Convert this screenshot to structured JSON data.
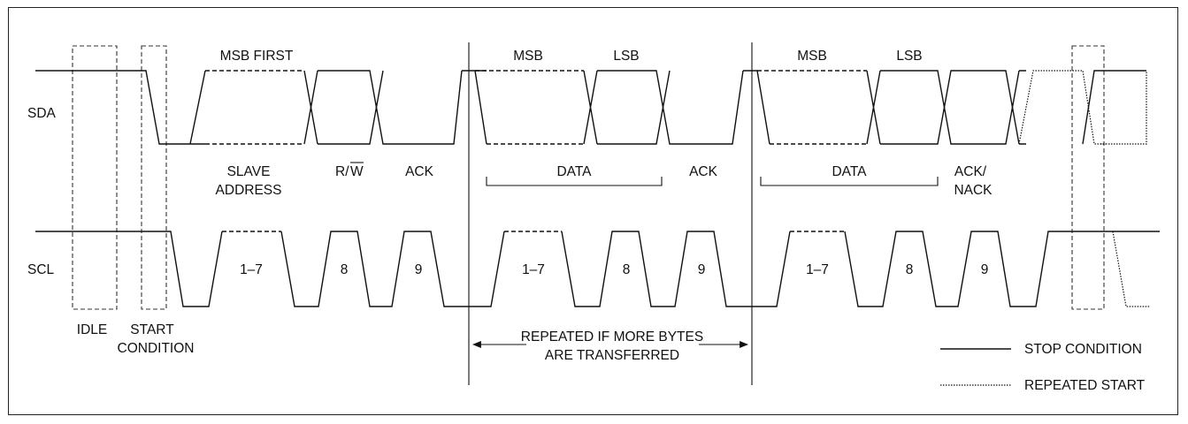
{
  "signals": {
    "sda": "SDA",
    "scl": "SCL"
  },
  "top_labels": {
    "msb_first": "MSB FIRST",
    "msb_1": "MSB",
    "lsb_1": "LSB",
    "msb_2": "MSB",
    "lsb_2": "LSB"
  },
  "sda_labels": {
    "slave": "SLAVE",
    "address": "ADDRESS",
    "rw_r": "R/",
    "rw_w": "W",
    "ack_1": "ACK",
    "data_1": "DATA",
    "ack_2": "ACK",
    "data_2": "DATA",
    "ack_nack_1": "ACK/",
    "ack_nack_2": "NACK"
  },
  "scl_labels": {
    "bits_a": "1–7",
    "bit8_a": "8",
    "bit9_a": "9",
    "bits_b": "1–7",
    "bit8_b": "8",
    "bit9_b": "9",
    "bits_c": "1–7",
    "bit8_c": "8",
    "bit9_c": "9"
  },
  "bottom_labels": {
    "idle": "IDLE",
    "start": "START",
    "condition": "CONDITION",
    "repeated_1": "REPEATED IF MORE BYTES",
    "repeated_2": "ARE TRANSFERRED"
  },
  "legend": {
    "stop": "STOP CONDITION",
    "repeated_start": "REPEATED START"
  }
}
